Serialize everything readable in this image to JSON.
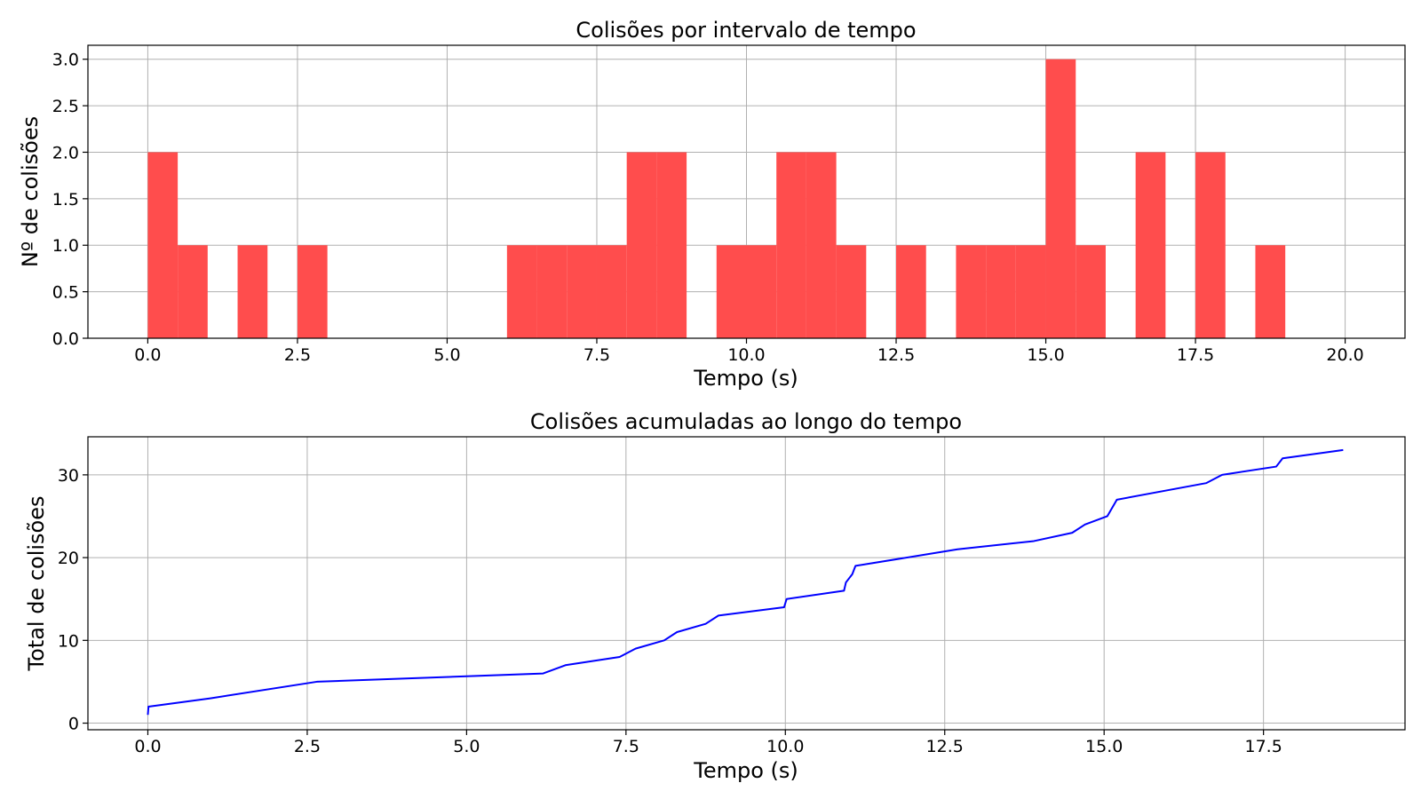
{
  "chart_data": [
    {
      "type": "bar",
      "title": "Colisões por intervalo de tempo",
      "xlabel": "Tempo (s)",
      "ylabel": "Nº de colisões",
      "xlim": [
        -1,
        21
      ],
      "ylim": [
        0,
        3.15
      ],
      "xticks": [
        0.0,
        2.5,
        5.0,
        7.5,
        10.0,
        12.5,
        15.0,
        17.5,
        20.0
      ],
      "xtick_labels": [
        "0.0",
        "2.5",
        "5.0",
        "7.5",
        "10.0",
        "12.5",
        "15.0",
        "17.5",
        "20.0"
      ],
      "yticks": [
        0.0,
        0.5,
        1.0,
        1.5,
        2.0,
        2.5,
        3.0
      ],
      "ytick_labels": [
        "0.0",
        "0.5",
        "1.0",
        "1.5",
        "2.0",
        "2.5",
        "3.0"
      ],
      "grid": true,
      "color": "#ff4d4d",
      "bins": [
        {
          "x0": 0.0,
          "x1": 0.5,
          "value": 2
        },
        {
          "x0": 0.5,
          "x1": 1.0,
          "value": 1
        },
        {
          "x0": 1.5,
          "x1": 2.0,
          "value": 1
        },
        {
          "x0": 2.5,
          "x1": 3.0,
          "value": 1
        },
        {
          "x0": 6.0,
          "x1": 6.5,
          "value": 1
        },
        {
          "x0": 6.5,
          "x1": 7.0,
          "value": 1
        },
        {
          "x0": 7.0,
          "x1": 7.5,
          "value": 1
        },
        {
          "x0": 7.5,
          "x1": 8.0,
          "value": 1
        },
        {
          "x0": 8.0,
          "x1": 8.5,
          "value": 2
        },
        {
          "x0": 8.5,
          "x1": 9.0,
          "value": 2
        },
        {
          "x0": 9.5,
          "x1": 10.0,
          "value": 1
        },
        {
          "x0": 10.0,
          "x1": 10.5,
          "value": 1
        },
        {
          "x0": 10.5,
          "x1": 11.0,
          "value": 2
        },
        {
          "x0": 11.0,
          "x1": 11.5,
          "value": 2
        },
        {
          "x0": 11.5,
          "x1": 12.0,
          "value": 1
        },
        {
          "x0": 12.5,
          "x1": 13.0,
          "value": 1
        },
        {
          "x0": 13.5,
          "x1": 14.0,
          "value": 1
        },
        {
          "x0": 14.0,
          "x1": 14.5,
          "value": 1
        },
        {
          "x0": 14.5,
          "x1": 15.0,
          "value": 1
        },
        {
          "x0": 15.0,
          "x1": 15.5,
          "value": 3
        },
        {
          "x0": 15.5,
          "x1": 16.0,
          "value": 1
        },
        {
          "x0": 16.5,
          "x1": 17.0,
          "value": 2
        },
        {
          "x0": 17.5,
          "x1": 18.0,
          "value": 2
        },
        {
          "x0": 18.5,
          "x1": 19.0,
          "value": 1
        }
      ]
    },
    {
      "type": "line",
      "title": "Colisões acumuladas ao longo do tempo",
      "xlabel": "Tempo (s)",
      "ylabel": "Total de colisões",
      "xlim": [
        -0.94,
        19.72
      ],
      "ylim": [
        -0.8,
        34.6
      ],
      "xticks": [
        0.0,
        2.5,
        5.0,
        7.5,
        10.0,
        12.5,
        15.0,
        17.5
      ],
      "xtick_labels": [
        "0.0",
        "2.5",
        "5.0",
        "7.5",
        "10.0",
        "12.5",
        "15.0",
        "17.5"
      ],
      "yticks": [
        0,
        10,
        20,
        30
      ],
      "ytick_labels": [
        "0",
        "10",
        "20",
        "30"
      ],
      "grid": true,
      "color": "#0000ff",
      "x": [
        0.0,
        0.01,
        0.02,
        0.98,
        2.65,
        6.2,
        6.55,
        7.4,
        7.65,
        8.1,
        8.3,
        8.75,
        8.95,
        9.98,
        10.02,
        10.92,
        10.95,
        11.05,
        11.1,
        12.7,
        13.9,
        14.5,
        14.7,
        15.05,
        15.2,
        16.6,
        16.85,
        17.7,
        17.8,
        18.75
      ],
      "y": [
        1,
        2,
        2,
        3,
        5,
        6,
        7,
        8,
        9,
        10,
        11,
        12,
        13,
        14,
        15,
        16,
        17,
        18,
        19,
        21,
        22,
        23,
        24,
        25,
        27,
        29,
        30,
        31,
        32,
        33
      ]
    }
  ]
}
